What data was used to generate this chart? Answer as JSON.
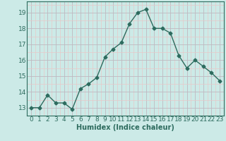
{
  "x": [
    0,
    1,
    2,
    3,
    4,
    5,
    6,
    7,
    8,
    9,
    10,
    11,
    12,
    13,
    14,
    15,
    16,
    17,
    18,
    19,
    20,
    21,
    22,
    23
  ],
  "y": [
    13.0,
    13.0,
    13.8,
    13.3,
    13.3,
    12.9,
    14.2,
    14.5,
    14.9,
    16.2,
    16.7,
    17.1,
    18.3,
    19.0,
    19.2,
    18.0,
    18.0,
    17.7,
    16.3,
    15.5,
    16.0,
    15.6,
    15.2,
    14.7
  ],
  "line_color": "#2d6b5e",
  "marker": "D",
  "marker_size": 2.5,
  "bg_color": "#cceae7",
  "grid_color_major": "#c0b8c0",
  "grid_color_minor": "#e8c8c8",
  "xlabel": "Humidex (Indice chaleur)",
  "xlabel_fontsize": 7,
  "ylabel_ticks": [
    13,
    14,
    15,
    16,
    17,
    18,
    19
  ],
  "ylim": [
    12.5,
    19.7
  ],
  "xlim": [
    -0.5,
    23.5
  ],
  "tick_fontsize": 6.5,
  "linewidth": 1.0
}
